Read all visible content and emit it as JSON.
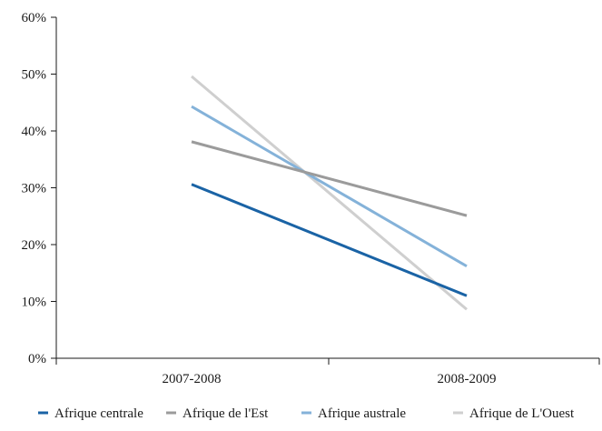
{
  "chart_data": {
    "type": "line",
    "categories": [
      "2007-2008",
      "2008-2009"
    ],
    "y_ticks": [
      "0%",
      "10%",
      "20%",
      "30%",
      "40%",
      "50%",
      "60%"
    ],
    "ylim": [
      0,
      60
    ],
    "grid": false,
    "legend_position": "bottom",
    "series": [
      {
        "name": "Afrique centrale",
        "values": [
          30.6,
          11.0
        ],
        "color": "#1a63a5"
      },
      {
        "name": "Afrique de l'Est",
        "values": [
          38.1,
          25.1
        ],
        "color": "#9b9b9b"
      },
      {
        "name": "Afrique australe",
        "values": [
          44.3,
          16.2
        ],
        "color": "#84b2d9"
      },
      {
        "name": "Afrique de L'Ouest",
        "values": [
          49.6,
          8.6
        ],
        "color": "#cfcfcf"
      }
    ]
  }
}
